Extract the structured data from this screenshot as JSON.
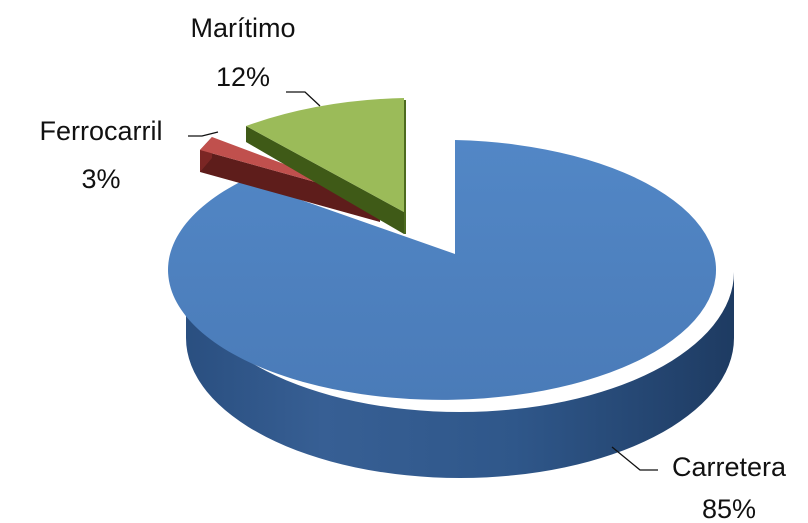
{
  "chart_data": {
    "type": "pie",
    "style": "3d-exploded",
    "slices": [
      {
        "name": "Carretera",
        "value": 85,
        "label": "85%",
        "color": "#4F81BD"
      },
      {
        "name": "Ferrocarril",
        "value": 3,
        "label": "3%",
        "color": "#C0504D"
      },
      {
        "name": "Marítimo",
        "value": 12,
        "label": "12%",
        "color": "#9BBB59"
      }
    ],
    "legend": "none"
  }
}
